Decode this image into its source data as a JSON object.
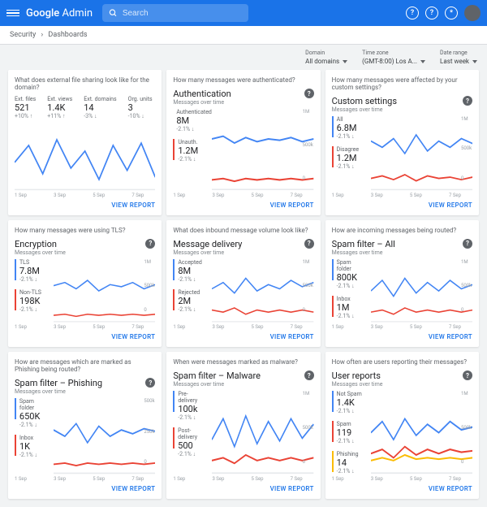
{
  "topbar": {
    "brand_a": "Google",
    "brand_b": "Admin",
    "search_placeholder": "Search",
    "help": "?",
    "alert": "?",
    "gear": "*"
  },
  "breadcrumb": {
    "a": "Security",
    "b": "Dashboards"
  },
  "controls": {
    "domain": {
      "label": "Domain",
      "value": "All domains"
    },
    "tz": {
      "label": "Time zone",
      "value": "(GMT-8:00) Los A..."
    },
    "range": {
      "label": "Date range",
      "value": "Last week"
    }
  },
  "xaxis": [
    "1 Sep",
    "3 Sep",
    "5 Sep",
    "7 Sep"
  ],
  "view_report": "VIEW REPORT",
  "colors": {
    "blue": "#4285f4",
    "red": "#ea4335",
    "yellow": "#fbbc04",
    "grid": "#e8eaed"
  },
  "cards": [
    {
      "q": "What does external file sharing look like for the domain?",
      "title": "",
      "sub": "",
      "topstats": [
        {
          "label": "Ext. files",
          "val": "521",
          "delta": "+10% ↑",
          "color": "#4285f4"
        },
        {
          "label": "Ext. views",
          "val": "1.4K",
          "delta": "+11% ↑",
          "color": "#4285f4"
        },
        {
          "label": "Ext. domains",
          "val": "14",
          "delta": "-3% ↓",
          "color": "#4285f4"
        },
        {
          "label": "Org. units",
          "val": "3",
          "delta": "-10% ↓",
          "color": "#4285f4"
        }
      ],
      "series": [
        {
          "color": "#4285f4",
          "pts": [
            35,
            20,
            45,
            15,
            40,
            25,
            50,
            20,
            42,
            18,
            48
          ]
        }
      ],
      "ymax": "",
      "ymid": "",
      "ymin": ""
    },
    {
      "q": "How many messages were authenticated?",
      "title": "Authentication",
      "sub": "Messages over time",
      "stats": [
        {
          "label": "Authenticated",
          "val": "8M",
          "delta": "-2.1% ↓",
          "color": "#4285f4"
        },
        {
          "label": "Unauth.",
          "val": "1.2M",
          "delta": "-2.1% ↓",
          "color": "#ea4335"
        }
      ],
      "series": [
        {
          "color": "#4285f4",
          "pts": [
            22,
            20,
            25,
            21,
            24,
            22,
            23,
            21,
            24,
            22
          ]
        },
        {
          "color": "#ea4335",
          "pts": [
            52,
            51,
            53,
            51,
            52,
            51,
            52,
            51,
            52,
            51
          ]
        }
      ],
      "ymax": "1M",
      "ymid": "500k",
      "ymin": "0"
    },
    {
      "q": "How many messages were affected by your custom settings?",
      "title": "Custom settings",
      "sub": "Messages over time",
      "stats": [
        {
          "label": "All",
          "val": "6.8M",
          "delta": "-2.1% ↓",
          "color": "#4285f4"
        },
        {
          "label": "Disagree",
          "val": "1.2M",
          "delta": "-2.1% ↓",
          "color": "#ea4335"
        }
      ],
      "series": [
        {
          "color": "#4285f4",
          "pts": [
            20,
            25,
            18,
            30,
            15,
            28,
            20,
            25,
            18,
            22
          ]
        },
        {
          "color": "#ea4335",
          "pts": [
            50,
            48,
            51,
            47,
            52,
            48,
            50,
            49,
            51,
            49
          ]
        }
      ],
      "ymax": "1M",
      "ymid": "500k",
      "ymin": "0"
    },
    {
      "q": "How many messages were using TLS?",
      "title": "Encryption",
      "sub": "Messages over time",
      "stats": [
        {
          "label": "TLS",
          "val": "7.8M",
          "delta": "-2.1% ↓",
          "color": "#4285f4"
        },
        {
          "label": "Non-TLS",
          "val": "198K",
          "delta": "-2.1% ↓",
          "color": "#ea4335"
        }
      ],
      "series": [
        {
          "color": "#4285f4",
          "pts": [
            25,
            22,
            28,
            20,
            30,
            24,
            26,
            22,
            28,
            24
          ]
        },
        {
          "color": "#ea4335",
          "pts": [
            53,
            52,
            54,
            52,
            53,
            52,
            53,
            52,
            53,
            52
          ]
        }
      ],
      "ymax": "1M",
      "ymid": "500k",
      "ymin": "0"
    },
    {
      "q": "What does inbound message volume look like?",
      "title": "Message delivery",
      "sub": "Messages over time",
      "stats": [
        {
          "label": "Accepted",
          "val": "8M",
          "delta": "-2.1% ↓",
          "color": "#4285f4"
        },
        {
          "label": "Rejected",
          "val": "2M",
          "delta": "-2.1% ↓",
          "color": "#ea4335"
        }
      ],
      "series": [
        {
          "color": "#4285f4",
          "pts": [
            28,
            22,
            32,
            18,
            30,
            24,
            28,
            20,
            26,
            22
          ]
        },
        {
          "color": "#ea4335",
          "pts": [
            48,
            50,
            46,
            52,
            48,
            50,
            48,
            50,
            48,
            50
          ]
        }
      ],
      "ymax": "1M",
      "ymid": "500k",
      "ymin": "0"
    },
    {
      "q": "How are incoming messages being routed?",
      "title": "Spam filter – All",
      "sub": "Messages over time",
      "stats": [
        {
          "label": "Spam folder",
          "val": "800K",
          "delta": "-2.1% ↓",
          "color": "#4285f4"
        },
        {
          "label": "Inbox",
          "val": "1M",
          "delta": "-2.1% ↓",
          "color": "#ea4335"
        }
      ],
      "series": [
        {
          "color": "#4285f4",
          "pts": [
            30,
            20,
            35,
            18,
            32,
            22,
            30,
            20,
            28,
            24
          ]
        },
        {
          "color": "#ea4335",
          "pts": [
            50,
            48,
            52,
            46,
            50,
            48,
            50,
            48,
            50,
            48
          ]
        }
      ],
      "ymax": "1M",
      "ymid": "500k",
      "ymin": "0"
    },
    {
      "q": "How are messages which are marked as Phishing being routed?",
      "title": "Spam filter – Phishing",
      "sub": "Messages over time",
      "stats": [
        {
          "label": "Spam folder",
          "val": "650K",
          "delta": "-2.1% ↓",
          "color": "#4285f4"
        },
        {
          "label": "Inbox",
          "val": "1K",
          "delta": "-2.1% ↓",
          "color": "#ea4335"
        }
      ],
      "series": [
        {
          "color": "#4285f4",
          "pts": [
            25,
            30,
            20,
            35,
            22,
            30,
            25,
            28,
            24,
            26
          ]
        },
        {
          "color": "#ea4335",
          "pts": [
            52,
            51,
            53,
            51,
            52,
            51,
            52,
            51,
            52,
            51
          ]
        }
      ],
      "ymax": "500k",
      "ymid": "250k",
      "ymin": "0"
    },
    {
      "q": "When were messages marked as malware?",
      "title": "Spam filter – Malware",
      "sub": "Messages over time",
      "stats": [
        {
          "label": "Pre-delivery",
          "val": "100k",
          "delta": "-2.1% ↓",
          "color": "#4285f4"
        },
        {
          "label": "Post-delivery",
          "val": "500",
          "delta": "-2.1% ↓",
          "color": "#ea4335"
        }
      ],
      "series": [
        {
          "color": "#4285f4",
          "pts": [
            35,
            20,
            40,
            18,
            38,
            22,
            36,
            20,
            34,
            24
          ]
        },
        {
          "color": "#ea4335",
          "pts": [
            50,
            48,
            52,
            46,
            50,
            48,
            50,
            48,
            50,
            48
          ]
        }
      ],
      "ymax": "1M",
      "ymid": "500k",
      "ymin": "0"
    },
    {
      "q": "How often are users reporting their messages?",
      "title": "User reports",
      "sub": "Messages over time",
      "stats": [
        {
          "label": "Not Spam",
          "val": "1.4K",
          "delta": "-2.1% ↓",
          "color": "#4285f4"
        },
        {
          "label": "Spam",
          "val": "119",
          "delta": "-2.1% ↓",
          "color": "#ea4335"
        },
        {
          "label": "Phishing",
          "val": "14",
          "delta": "-2.1% ↓",
          "color": "#fbbc04"
        }
      ],
      "series": [
        {
          "color": "#4285f4",
          "pts": [
            30,
            22,
            35,
            20,
            32,
            24,
            30,
            22,
            28,
            26
          ]
        },
        {
          "color": "#ea4335",
          "pts": [
            45,
            42,
            48,
            40,
            46,
            42,
            45,
            42,
            44,
            43
          ]
        },
        {
          "color": "#fbbc04",
          "pts": [
            50,
            48,
            50,
            46,
            49,
            48,
            49,
            48,
            49,
            48
          ]
        }
      ],
      "ymax": "1M",
      "ymid": "500k",
      "ymin": "0"
    }
  ]
}
